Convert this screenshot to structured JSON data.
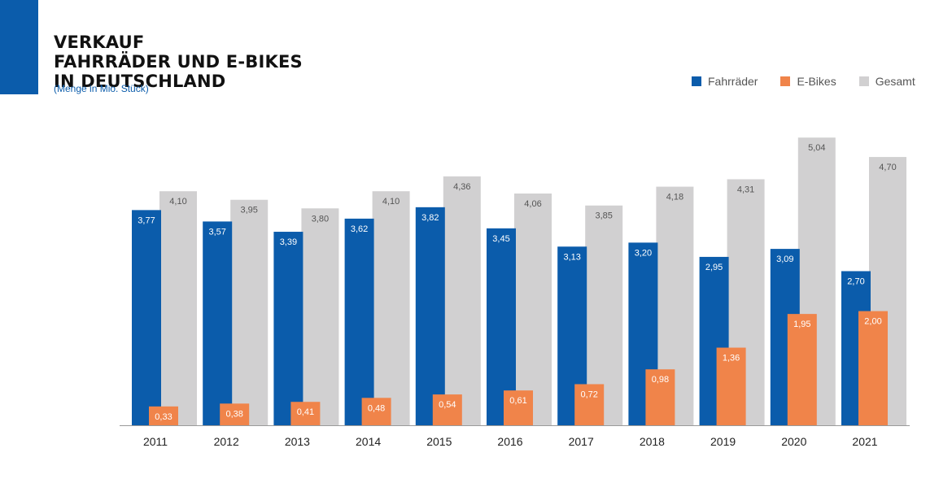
{
  "header": {
    "title_lines": [
      "VERKAUF",
      "FAHRRÄDER UND E-BIKES",
      "IN DEUTSCHLAND"
    ],
    "subtitle": "(Menge in Mio. Stück)"
  },
  "colors": {
    "accent": "#0b5cab",
    "fahrraeder": "#0b5cab",
    "ebikes": "#f0844a",
    "gesamt": "#d1d0d1"
  },
  "chart_data": {
    "type": "bar",
    "title": "VERKAUF FAHRRÄDER UND E-BIKES IN DEUTSCHLAND",
    "subtitle": "(Menge in Mio. Stück)",
    "categories": [
      "2011",
      "2012",
      "2013",
      "2014",
      "2015",
      "2016",
      "2017",
      "2018",
      "2019",
      "2020",
      "2021"
    ],
    "series": [
      {
        "name": "Fahrräder",
        "values": [
          3.77,
          3.57,
          3.39,
          3.62,
          3.82,
          3.45,
          3.13,
          3.2,
          2.95,
          3.09,
          2.7
        ],
        "labels": [
          "3,77",
          "3,57",
          "3,39",
          "3,62",
          "3,82",
          "3,45",
          "3,13",
          "3,20",
          "2,95",
          "3,09",
          "2,70"
        ]
      },
      {
        "name": "E-Bikes",
        "values": [
          0.33,
          0.38,
          0.41,
          0.48,
          0.54,
          0.61,
          0.72,
          0.98,
          1.36,
          1.95,
          2.0
        ],
        "labels": [
          "0,33",
          "0,38",
          "0,41",
          "0,48",
          "0,54",
          "0,61",
          "0,72",
          "0,98",
          "1,36",
          "1,95",
          "2,00"
        ]
      },
      {
        "name": "Gesamt",
        "values": [
          4.1,
          3.95,
          3.8,
          4.1,
          4.36,
          4.06,
          3.85,
          4.18,
          4.31,
          5.04,
          4.7
        ],
        "labels": [
          "4,10",
          "3,95",
          "3,80",
          "4,10",
          "4,36",
          "4,06",
          "3,85",
          "4,18",
          "4,31",
          "5,04",
          "4,70"
        ]
      }
    ],
    "legend": [
      "Fahrräder",
      "E-Bikes",
      "Gesamt"
    ],
    "legend_position": "top-right",
    "ylim": [
      0,
      5.1
    ],
    "grid": false,
    "xlabel": "",
    "ylabel": ""
  }
}
